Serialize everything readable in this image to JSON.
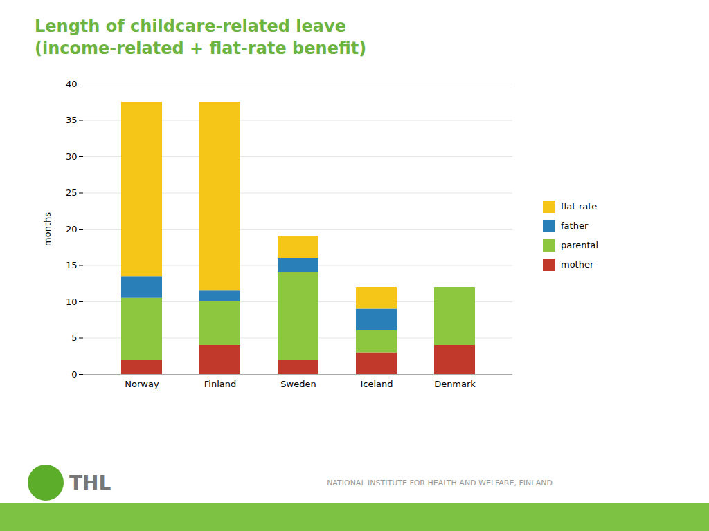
{
  "chart_data": {
    "type": "bar",
    "title": "Length of childcare-related leave",
    "subtitle": "(income-related + flat-rate benefit)",
    "categories": [
      "Norway",
      "Finland",
      "Sweden",
      "Iceland",
      "Denmark"
    ],
    "series": [
      {
        "name": "mother",
        "color": "#C0392B",
        "values": [
          2.0,
          4.0,
          2.0,
          3.0,
          4.0
        ]
      },
      {
        "name": "parental",
        "color": "#8DC63F",
        "values": [
          8.5,
          6.0,
          12.0,
          3.0,
          8.0
        ]
      },
      {
        "name": "father",
        "color": "#2980B9",
        "values": [
          3.0,
          1.5,
          2.0,
          3.0,
          0.0
        ]
      },
      {
        "name": "flat-rate",
        "color": "#F5C518",
        "values": [
          24.0,
          26.0,
          3.0,
          3.0,
          0.0
        ]
      }
    ],
    "ylabel": "months",
    "ylim": [
      0,
      40
    ],
    "yticks": [
      0,
      5,
      10,
      15,
      20,
      25,
      30,
      35,
      40
    ],
    "stacked": true,
    "grid": true,
    "legend": "right",
    "annotations": [
      "THL",
      "NATIONAL INSTITUTE FOR HEALTH AND WELFARE, FINLAND"
    ]
  }
}
